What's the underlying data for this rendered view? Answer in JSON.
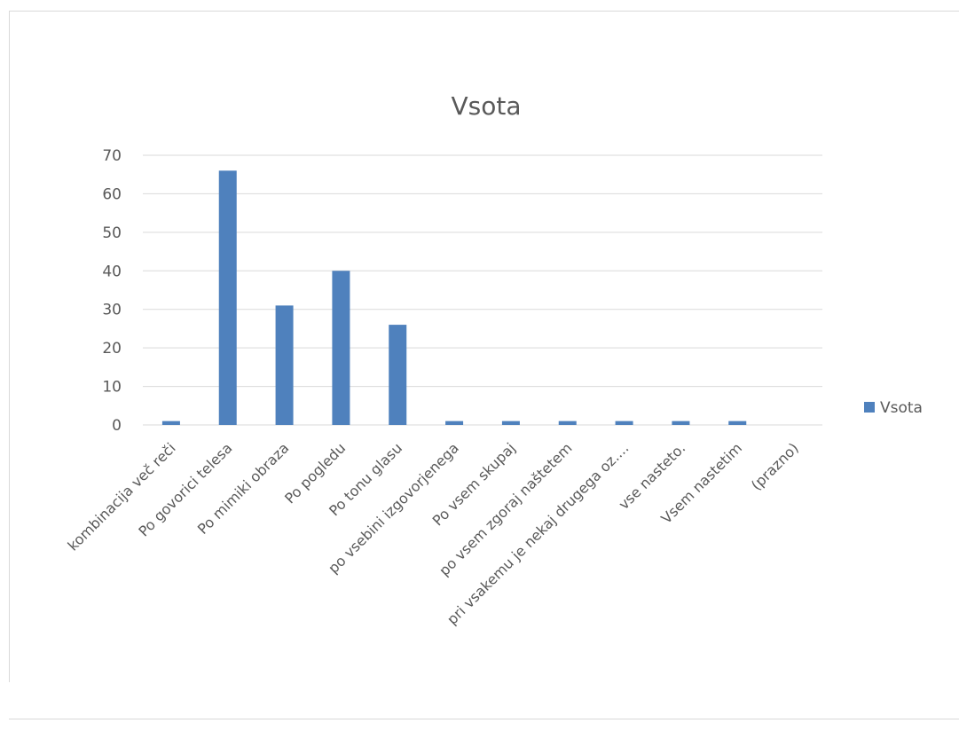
{
  "chart_data": {
    "type": "bar",
    "title": "Vsota",
    "xlabel": "",
    "ylabel": "",
    "ylim": [
      0,
      70
    ],
    "yticks": [
      0,
      10,
      20,
      30,
      40,
      50,
      60,
      70
    ],
    "grid": true,
    "legend_position": "right",
    "bar_color": "#4f81bd",
    "categories": [
      "kombinacija več reči",
      "Po govorici telesa",
      "Po mimiki obraza",
      "Po pogledu",
      "Po tonu glasu",
      "po vsebini izgovorjenega",
      "Po vsem skupaj",
      "po vsem zgoraj naštetem",
      "pri vsakemu je nekaj drugega oz....",
      "vse nasteto.",
      "Vsem nastetim",
      "(prazno)"
    ],
    "series": [
      {
        "name": "Vsota",
        "values": [
          1,
          66,
          31,
          40,
          26,
          1,
          1,
          1,
          1,
          1,
          1,
          0
        ]
      }
    ]
  }
}
